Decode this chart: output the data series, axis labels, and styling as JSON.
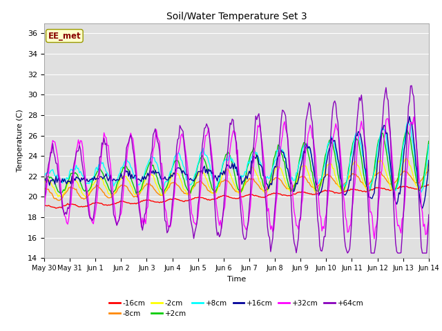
{
  "title": "Soil/Water Temperature Set 3",
  "xlabel": "Time",
  "ylabel": "Temperature (C)",
  "ylim": [
    14,
    37
  ],
  "yticks": [
    14,
    16,
    18,
    20,
    22,
    24,
    26,
    28,
    30,
    32,
    34,
    36
  ],
  "plot_bg_color": "#e0e0e0",
  "annotation_text": "EE_met",
  "annotation_bg": "#ffffcc",
  "annotation_border": "#999900",
  "annotation_text_color": "#880000",
  "series_colors": {
    "-16cm": "#ff0000",
    "-8cm": "#ff8800",
    "-2cm": "#ffff00",
    "+2cm": "#00cc00",
    "+8cm": "#00ffff",
    "+16cm": "#000099",
    "+32cm": "#ff00ff",
    "+64cm": "#8800bb"
  },
  "xtick_labels": [
    "May 30",
    "May 31",
    "Jun 1",
    "Jun 2",
    "Jun 3",
    "Jun 4",
    "Jun 5",
    "Jun 6",
    "Jun 7",
    "Jun 8",
    "Jun 9",
    "Jun 10",
    "Jun 11",
    "Jun 12",
    "Jun 13",
    "Jun 14"
  ],
  "grid_color": "#ffffff"
}
